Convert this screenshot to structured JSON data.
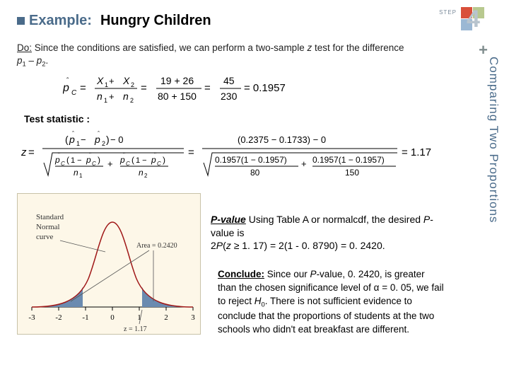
{
  "logo": {
    "step_text": "STEP",
    "number": "4"
  },
  "side_title": "Comparing Two Proportions",
  "title": {
    "example_label": "Example:",
    "main": "Hungry Children"
  },
  "do": {
    "label": "Do:",
    "text_a": " Since the conditions are satisfied, we can perform a two-sample ",
    "z_text": "z",
    "text_b": " test for the difference ",
    "p1": "p",
    "sub1": "1",
    "dash": " – ",
    "p2": "p",
    "sub2": "2",
    "period": "."
  },
  "pooled_formula": {
    "lhs_hat": "ˆ",
    "lhs": "p",
    "lhs_sub": "C",
    "eq": " = ",
    "numer1_a": "X",
    "numer1_a_sub": "1",
    "plus1": " + ",
    "numer1_b": "X",
    "numer1_b_sub": "2",
    "denom1_a": "n",
    "denom1_a_sub": "1",
    "plus2": " + ",
    "denom1_b": "n",
    "denom1_b_sub": "2",
    "eq2": " = ",
    "numer2": "19 + 26",
    "denom2": "80 + 150",
    "eq3": " = ",
    "numer3": "45",
    "denom3": "230",
    "result": " = 0.1957"
  },
  "test_stat_label": "Test statistic",
  "z_formula": {
    "z": "z",
    "eq": " = ",
    "num_p1": "p",
    "num_p1_hat": "ˆ",
    "num_p1_sub": "1",
    "num_minus": " − ",
    "num_p2": "p",
    "num_p2_hat": "ˆ",
    "num_p2_sub": "2",
    "num_minus0": " − 0",
    "den_pc": "p",
    "den_pc_hat": "ˆ",
    "den_pc_sub": "C",
    "den_1m": "1 − ",
    "n1": "n",
    "n1_sub": "1",
    "n2": "n",
    "n2_sub": "2",
    "plus": " + ",
    "eq2": " = ",
    "num2": "(0.2375 − 0.1733) − 0",
    "d2a": "0.1957(1 − 0.1957)",
    "d2a_n": "80",
    "d2b": "0.1957(1 − 0.1957)",
    "d2b_n": "150",
    "result": " = 1.17"
  },
  "curve": {
    "label1": "Standard",
    "label2": "Normal",
    "label3": "curve",
    "area_label": "Area = 0.2420",
    "z_label": "z = 1.17",
    "ticks": [
      "-3",
      "-2",
      "-1",
      "0",
      "1",
      "2",
      "3"
    ],
    "fill_color": "#6b8bb0",
    "line_color": "#a01818",
    "bg_color": "#fdf7e8"
  },
  "pvalue": {
    "label": "P-value",
    "text_a": " Using Table A or normalcdf, the desired ",
    "pword": "P",
    "text_b": "-value is",
    "line2_a": "2",
    "line2_b": "P",
    "line2_c": "(",
    "line2_z": "z",
    "line2_d": " ≥ 1. 17) = 2(1 - 0. 8790) = 0. 2420."
  },
  "conclude": {
    "label": "Conclude:",
    "text_a": " Since our ",
    "pword": "P",
    "text_b": "-value, 0. 2420, is greater than the chosen significance level of α = 0. 05, we fail to reject ",
    "h": "H",
    "hsub": "0",
    "text_c": ". There is not sufficient evidence to conclude that the proportions of students at the two schools who didn't eat breakfast are different."
  }
}
